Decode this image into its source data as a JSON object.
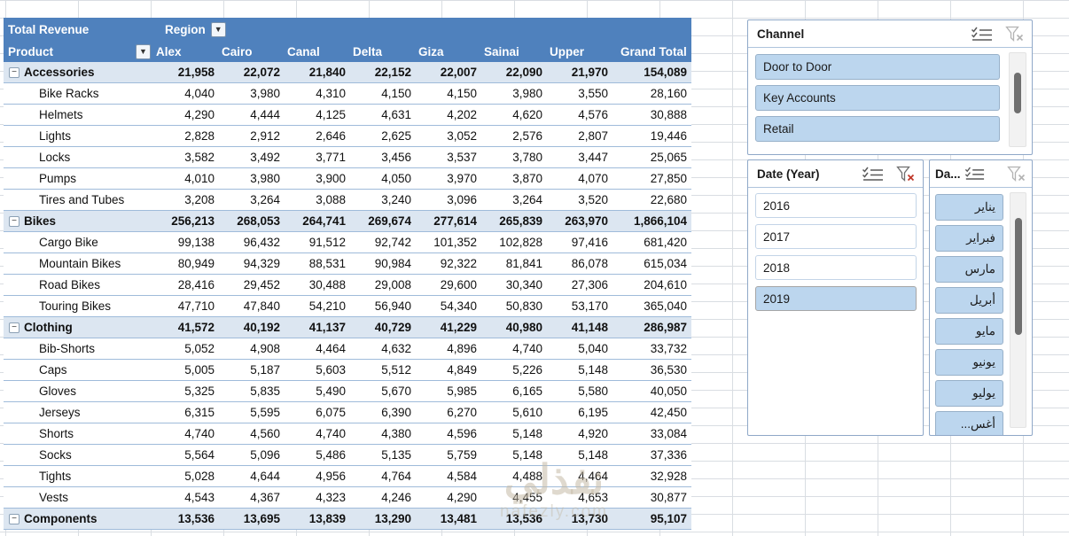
{
  "table": {
    "title": "Total Revenue",
    "filter_field": "Region",
    "row_field": "Product",
    "columns": [
      "Alex",
      "Cairo",
      "Canal",
      "Delta",
      "Giza",
      "Sainai",
      "Upper",
      "Grand Total"
    ],
    "rows": [
      {
        "label": "Accessories",
        "type": "category",
        "values": [
          "21,958",
          "22,072",
          "21,840",
          "22,152",
          "22,007",
          "22,090",
          "21,970",
          "154,089"
        ]
      },
      {
        "label": "Bike Racks",
        "type": "detail",
        "values": [
          "4,040",
          "3,980",
          "4,310",
          "4,150",
          "4,150",
          "3,980",
          "3,550",
          "28,160"
        ]
      },
      {
        "label": "Helmets",
        "type": "detail",
        "values": [
          "4,290",
          "4,444",
          "4,125",
          "4,631",
          "4,202",
          "4,620",
          "4,576",
          "30,888"
        ]
      },
      {
        "label": "Lights",
        "type": "detail",
        "values": [
          "2,828",
          "2,912",
          "2,646",
          "2,625",
          "3,052",
          "2,576",
          "2,807",
          "19,446"
        ]
      },
      {
        "label": "Locks",
        "type": "detail",
        "values": [
          "3,582",
          "3,492",
          "3,771",
          "3,456",
          "3,537",
          "3,780",
          "3,447",
          "25,065"
        ]
      },
      {
        "label": "Pumps",
        "type": "detail",
        "values": [
          "4,010",
          "3,980",
          "3,900",
          "4,050",
          "3,970",
          "3,870",
          "4,070",
          "27,850"
        ]
      },
      {
        "label": "Tires and Tubes",
        "type": "detail",
        "values": [
          "3,208",
          "3,264",
          "3,088",
          "3,240",
          "3,096",
          "3,264",
          "3,520",
          "22,680"
        ]
      },
      {
        "label": "Bikes",
        "type": "category",
        "values": [
          "256,213",
          "268,053",
          "264,741",
          "269,674",
          "277,614",
          "265,839",
          "263,970",
          "1,866,104"
        ]
      },
      {
        "label": "Cargo Bike",
        "type": "detail",
        "values": [
          "99,138",
          "96,432",
          "91,512",
          "92,742",
          "101,352",
          "102,828",
          "97,416",
          "681,420"
        ]
      },
      {
        "label": "Mountain Bikes",
        "type": "detail",
        "values": [
          "80,949",
          "94,329",
          "88,531",
          "90,984",
          "92,322",
          "81,841",
          "86,078",
          "615,034"
        ]
      },
      {
        "label": "Road Bikes",
        "type": "detail",
        "values": [
          "28,416",
          "29,452",
          "30,488",
          "29,008",
          "29,600",
          "30,340",
          "27,306",
          "204,610"
        ]
      },
      {
        "label": "Touring Bikes",
        "type": "detail",
        "values": [
          "47,710",
          "47,840",
          "54,210",
          "56,940",
          "54,340",
          "50,830",
          "53,170",
          "365,040"
        ]
      },
      {
        "label": "Clothing",
        "type": "category",
        "values": [
          "41,572",
          "40,192",
          "41,137",
          "40,729",
          "41,229",
          "40,980",
          "41,148",
          "286,987"
        ]
      },
      {
        "label": "Bib-Shorts",
        "type": "detail",
        "values": [
          "5,052",
          "4,908",
          "4,464",
          "4,632",
          "4,896",
          "4,740",
          "5,040",
          "33,732"
        ]
      },
      {
        "label": "Caps",
        "type": "detail",
        "values": [
          "5,005",
          "5,187",
          "5,603",
          "5,512",
          "4,849",
          "5,226",
          "5,148",
          "36,530"
        ]
      },
      {
        "label": "Gloves",
        "type": "detail",
        "values": [
          "5,325",
          "5,835",
          "5,490",
          "5,670",
          "5,985",
          "6,165",
          "5,580",
          "40,050"
        ]
      },
      {
        "label": "Jerseys",
        "type": "detail",
        "values": [
          "6,315",
          "5,595",
          "6,075",
          "6,390",
          "6,270",
          "5,610",
          "6,195",
          "42,450"
        ]
      },
      {
        "label": "Shorts",
        "type": "detail",
        "values": [
          "4,740",
          "4,560",
          "4,740",
          "4,380",
          "4,596",
          "5,148",
          "4,920",
          "33,084"
        ]
      },
      {
        "label": "Socks",
        "type": "detail",
        "values": [
          "5,564",
          "5,096",
          "5,486",
          "5,135",
          "5,759",
          "5,148",
          "5,148",
          "37,336"
        ]
      },
      {
        "label": "Tights",
        "type": "detail",
        "values": [
          "5,028",
          "4,644",
          "4,956",
          "4,764",
          "4,584",
          "4,488",
          "4,464",
          "32,928"
        ]
      },
      {
        "label": "Vests",
        "type": "detail",
        "values": [
          "4,543",
          "4,367",
          "4,323",
          "4,246",
          "4,290",
          "4,455",
          "4,653",
          "30,877"
        ]
      },
      {
        "label": "Components",
        "type": "category",
        "values": [
          "13,536",
          "13,695",
          "13,839",
          "13,290",
          "13,481",
          "13,536",
          "13,730",
          "95,107"
        ]
      }
    ]
  },
  "slicers": {
    "channel": {
      "title": "Channel",
      "filter_active": false,
      "items": [
        {
          "label": "Door to Door",
          "selected": true
        },
        {
          "label": "Key Accounts",
          "selected": true
        },
        {
          "label": "Retail",
          "selected": true
        }
      ]
    },
    "year": {
      "title": "Date (Year)",
      "filter_active": true,
      "items": [
        {
          "label": "2016",
          "selected": false
        },
        {
          "label": "2017",
          "selected": false
        },
        {
          "label": "2018",
          "selected": false
        },
        {
          "label": "2019",
          "selected": true
        }
      ]
    },
    "month": {
      "title": "Da...",
      "filter_active": false,
      "items": [
        {
          "label": "يناير",
          "selected": true
        },
        {
          "label": "فبراير",
          "selected": true
        },
        {
          "label": "مارس",
          "selected": true
        },
        {
          "label": "أبريل",
          "selected": true
        },
        {
          "label": "مايو",
          "selected": true
        },
        {
          "label": "يونيو",
          "selected": true
        },
        {
          "label": "يوليو",
          "selected": true
        },
        {
          "label": "أغس...",
          "selected": true
        }
      ]
    }
  },
  "watermark": {
    "arabic": "نفذلي",
    "latin": "nafezly.com"
  },
  "colors": {
    "header_blue": "#4F81BD",
    "category_row": "#DCE6F1",
    "row_border": "#9FBBDA",
    "slicer_selected": "#BCD6EE",
    "filter_active_x": "#C0392B"
  }
}
